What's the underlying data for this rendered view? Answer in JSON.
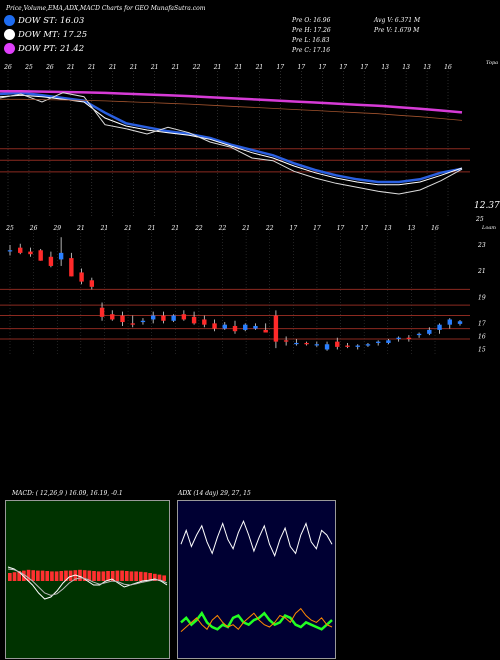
{
  "header": {
    "title": "Price,Volume,EMA,ADX,MACD Charts for GEO MunafaSutra.com",
    "ohlc": {
      "open": "Pre   O: 16.96",
      "high": "Pre   H: 17.26",
      "low": "Pre   L: 16.83",
      "close": "Pre   C: 17.16"
    },
    "avg_volume": "Avg V: 6.371 M",
    "prev_volume": "Pre   V: 1.679 M"
  },
  "legend": [
    {
      "label": "DOW ST: 16.03",
      "color": "#1e6cf0"
    },
    {
      "label": "DOW MT: 17.25",
      "color": "#ffffff"
    },
    {
      "label": "DOW PT: 21.42",
      "color": "#e040fb"
    }
  ],
  "colors": {
    "up": "#2a7fff",
    "down": "#ff2a2a",
    "ema_short": "#2a5fe0",
    "ema_mid": "#ffffff",
    "ema_long": "#d63bd6",
    "band": "#8b2a20",
    "macd_bg": "#003300",
    "adx_bg": "#000033"
  },
  "chart_data": [
    {
      "type": "line",
      "name": "top-ema-panel",
      "right_label": "Topa",
      "price_label": "12.37",
      "date_labels": [
        "26",
        "25",
        "26",
        "21",
        "21",
        "21",
        "21",
        "21",
        "21",
        "22",
        "21",
        "21",
        "21",
        "17",
        "17",
        "17",
        "17",
        "17",
        "13",
        "13",
        "13",
        "16"
      ],
      "series": [
        {
          "name": "DOW ST",
          "color": "#2a5fe0",
          "values": [
            22.8,
            22.9,
            22.7,
            22.5,
            22.3,
            21.4,
            20.6,
            20.3,
            20.0,
            19.8,
            19.5,
            19.0,
            18.6,
            18.2,
            17.6,
            17.1,
            16.7,
            16.4,
            16.2,
            16.2,
            16.4,
            16.9,
            17.2
          ]
        },
        {
          "name": "DOW MT",
          "color": "#ffffff",
          "values": [
            22.6,
            22.7,
            22.6,
            22.4,
            22.2,
            21.0,
            20.4,
            20.1,
            19.9,
            19.7,
            19.4,
            18.9,
            18.4,
            18.0,
            17.4,
            16.9,
            16.5,
            16.2,
            16.0,
            16.0,
            16.2,
            16.7,
            17.25
          ]
        },
        {
          "name": "DOW PT",
          "color": "#d63bd6",
          "values": [
            23.0,
            23.0,
            22.98,
            22.95,
            22.92,
            22.88,
            22.82,
            22.76,
            22.7,
            22.64,
            22.56,
            22.48,
            22.4,
            22.32,
            22.24,
            22.16,
            22.08,
            22.0,
            21.92,
            21.8,
            21.7,
            21.56,
            21.42
          ]
        },
        {
          "name": "Close",
          "color": "#dddddd",
          "values": [
            22.5,
            22.8,
            22.2,
            22.9,
            22.6,
            20.5,
            20.2,
            19.8,
            20.3,
            19.9,
            19.2,
            18.8,
            18.0,
            17.8,
            17.0,
            16.5,
            16.1,
            15.8,
            15.5,
            15.3,
            15.6,
            16.3,
            17.16
          ]
        }
      ],
      "ylim": [
        15,
        24
      ]
    },
    {
      "type": "candlestick",
      "name": "price-panel",
      "right_label": "Loam",
      "date_labels": [
        "25",
        "26",
        "29",
        "21",
        "21",
        "21",
        "21",
        "21",
        "22",
        "22",
        "21",
        "22",
        "17",
        "17",
        "17",
        "17",
        "13",
        "13",
        "16"
      ],
      "y_ticks": [
        "23",
        "21",
        "19",
        "17",
        "16",
        "15"
      ],
      "candles": [
        {
          "o": 22.6,
          "h": 23.0,
          "l": 22.2,
          "c": 22.6
        },
        {
          "o": 22.8,
          "h": 23.1,
          "l": 22.3,
          "c": 22.4
        },
        {
          "o": 22.5,
          "h": 22.8,
          "l": 22.1,
          "c": 22.3
        },
        {
          "o": 22.6,
          "h": 22.7,
          "l": 21.8,
          "c": 21.8
        },
        {
          "o": 22.1,
          "h": 22.5,
          "l": 21.3,
          "c": 21.4
        },
        {
          "o": 21.9,
          "h": 23.6,
          "l": 21.4,
          "c": 22.4
        },
        {
          "o": 22.0,
          "h": 22.4,
          "l": 20.6,
          "c": 20.6
        },
        {
          "o": 20.9,
          "h": 21.2,
          "l": 20.0,
          "c": 20.2
        },
        {
          "o": 20.3,
          "h": 20.5,
          "l": 19.6,
          "c": 19.8
        },
        {
          "o": 18.2,
          "h": 18.6,
          "l": 17.2,
          "c": 17.5
        },
        {
          "o": 17.7,
          "h": 18.0,
          "l": 17.2,
          "c": 17.3
        },
        {
          "o": 17.6,
          "h": 17.9,
          "l": 16.8,
          "c": 17.1
        },
        {
          "o": 17.0,
          "h": 17.6,
          "l": 16.7,
          "c": 16.9
        },
        {
          "o": 17.1,
          "h": 17.4,
          "l": 16.9,
          "c": 17.2
        },
        {
          "o": 17.3,
          "h": 17.9,
          "l": 17.0,
          "c": 17.6
        },
        {
          "o": 17.6,
          "h": 17.9,
          "l": 17.0,
          "c": 17.2
        },
        {
          "o": 17.2,
          "h": 17.7,
          "l": 17.1,
          "c": 17.6
        },
        {
          "o": 17.7,
          "h": 18.0,
          "l": 17.2,
          "c": 17.3
        },
        {
          "o": 17.5,
          "h": 17.9,
          "l": 16.9,
          "c": 17.0
        },
        {
          "o": 17.3,
          "h": 17.6,
          "l": 16.7,
          "c": 16.9
        },
        {
          "o": 17.0,
          "h": 17.3,
          "l": 16.4,
          "c": 16.6
        },
        {
          "o": 16.6,
          "h": 17.1,
          "l": 16.5,
          "c": 16.9
        },
        {
          "o": 16.8,
          "h": 17.2,
          "l": 16.2,
          "c": 16.4
        },
        {
          "o": 16.5,
          "h": 17.0,
          "l": 16.4,
          "c": 16.9
        },
        {
          "o": 16.6,
          "h": 17.0,
          "l": 16.5,
          "c": 16.8
        },
        {
          "o": 16.5,
          "h": 17.0,
          "l": 16.3,
          "c": 16.3
        },
        {
          "o": 17.6,
          "h": 18.0,
          "l": 15.1,
          "c": 15.6
        },
        {
          "o": 15.7,
          "h": 16.0,
          "l": 15.3,
          "c": 15.6
        },
        {
          "o": 15.5,
          "h": 15.8,
          "l": 15.3,
          "c": 15.5
        },
        {
          "o": 15.5,
          "h": 15.6,
          "l": 15.3,
          "c": 15.4
        },
        {
          "o": 15.4,
          "h": 15.6,
          "l": 15.2,
          "c": 15.4
        },
        {
          "o": 15.0,
          "h": 15.6,
          "l": 14.9,
          "c": 15.4
        },
        {
          "o": 15.6,
          "h": 15.9,
          "l": 15.0,
          "c": 15.2
        },
        {
          "o": 15.3,
          "h": 15.5,
          "l": 15.1,
          "c": 15.2
        },
        {
          "o": 15.2,
          "h": 15.4,
          "l": 15.0,
          "c": 15.3
        },
        {
          "o": 15.3,
          "h": 15.5,
          "l": 15.2,
          "c": 15.4
        },
        {
          "o": 15.5,
          "h": 15.7,
          "l": 15.3,
          "c": 15.6
        },
        {
          "o": 15.5,
          "h": 15.8,
          "l": 15.4,
          "c": 15.7
        },
        {
          "o": 15.8,
          "h": 16.0,
          "l": 15.6,
          "c": 15.9
        },
        {
          "o": 15.9,
          "h": 16.1,
          "l": 15.6,
          "c": 15.8
        },
        {
          "o": 16.1,
          "h": 16.3,
          "l": 15.9,
          "c": 16.2
        },
        {
          "o": 16.2,
          "h": 16.7,
          "l": 16.1,
          "c": 16.5
        },
        {
          "o": 16.5,
          "h": 17.0,
          "l": 16.2,
          "c": 16.9
        },
        {
          "o": 16.9,
          "h": 17.4,
          "l": 16.6,
          "c": 17.3
        },
        {
          "o": 16.96,
          "h": 17.26,
          "l": 16.83,
          "c": 17.16
        }
      ],
      "ylim": [
        14.5,
        24
      ]
    },
    {
      "type": "bar",
      "name": "macd-panel",
      "title": "MACD: ( 12,26,9 ) 16.09, 16.19, -0.1",
      "series": [
        {
          "name": "macd",
          "color": "#ffffff",
          "values": [
            0.35,
            0.3,
            0.2,
            0.05,
            -0.1,
            -0.3,
            -0.45,
            -0.4,
            -0.25,
            -0.05,
            0.1,
            0.15,
            0.1,
            0.0,
            -0.1,
            -0.1,
            0.0,
            0.05,
            -0.05,
            -0.15,
            -0.1,
            -0.05,
            0.0,
            0.02,
            0.05,
            0.0,
            -0.1
          ]
        },
        {
          "name": "signal",
          "color": "#bbbbbb",
          "values": [
            0.3,
            0.28,
            0.22,
            0.12,
            0.0,
            -0.15,
            -0.3,
            -0.36,
            -0.32,
            -0.2,
            -0.05,
            0.05,
            0.08,
            0.04,
            -0.03,
            -0.08,
            -0.04,
            0.0,
            -0.02,
            -0.08,
            -0.1,
            -0.07,
            -0.03,
            0.0,
            0.03,
            0.02,
            -0.05
          ]
        },
        {
          "name": "histogram",
          "color": "#ff3030",
          "values": [
            0.2,
            0.22,
            0.25,
            0.26,
            0.28,
            0.27,
            0.26,
            0.26,
            0.25,
            0.24,
            0.24,
            0.25,
            0.26,
            0.26,
            0.27,
            0.28,
            0.27,
            0.26,
            0.25,
            0.24,
            0.24,
            0.25,
            0.25,
            0.26,
            0.26,
            0.25,
            0.24,
            0.24,
            0.23,
            0.22,
            0.2,
            0.18,
            0.16,
            0.14
          ]
        }
      ]
    },
    {
      "type": "line",
      "name": "adx-panel",
      "title": "ADX   (14 day) 29, 27, 15",
      "series": [
        {
          "name": "adx",
          "color": "#ffffff",
          "values": [
            46,
            52,
            45,
            50,
            54,
            47,
            42,
            49,
            55,
            48,
            44,
            51,
            56,
            50,
            43,
            49,
            54,
            46,
            41,
            48,
            53,
            45,
            42,
            50,
            55,
            47,
            44,
            52,
            50,
            46
          ]
        },
        {
          "name": "+di",
          "color": "#22ff22",
          "values": [
            12,
            14,
            11,
            13,
            16,
            12,
            10,
            9,
            11,
            10,
            14,
            15,
            12,
            11,
            13,
            14,
            16,
            13,
            11,
            12,
            15,
            14,
            11,
            10,
            12,
            11,
            10,
            9,
            11,
            13
          ]
        },
        {
          "name": "-di",
          "color": "#ff8800",
          "values": [
            8,
            10,
            12,
            14,
            11,
            9,
            13,
            15,
            12,
            10,
            11,
            9,
            12,
            14,
            16,
            13,
            11,
            10,
            12,
            15,
            14,
            12,
            16,
            18,
            15,
            13,
            12,
            14,
            11,
            10
          ]
        }
      ]
    }
  ]
}
